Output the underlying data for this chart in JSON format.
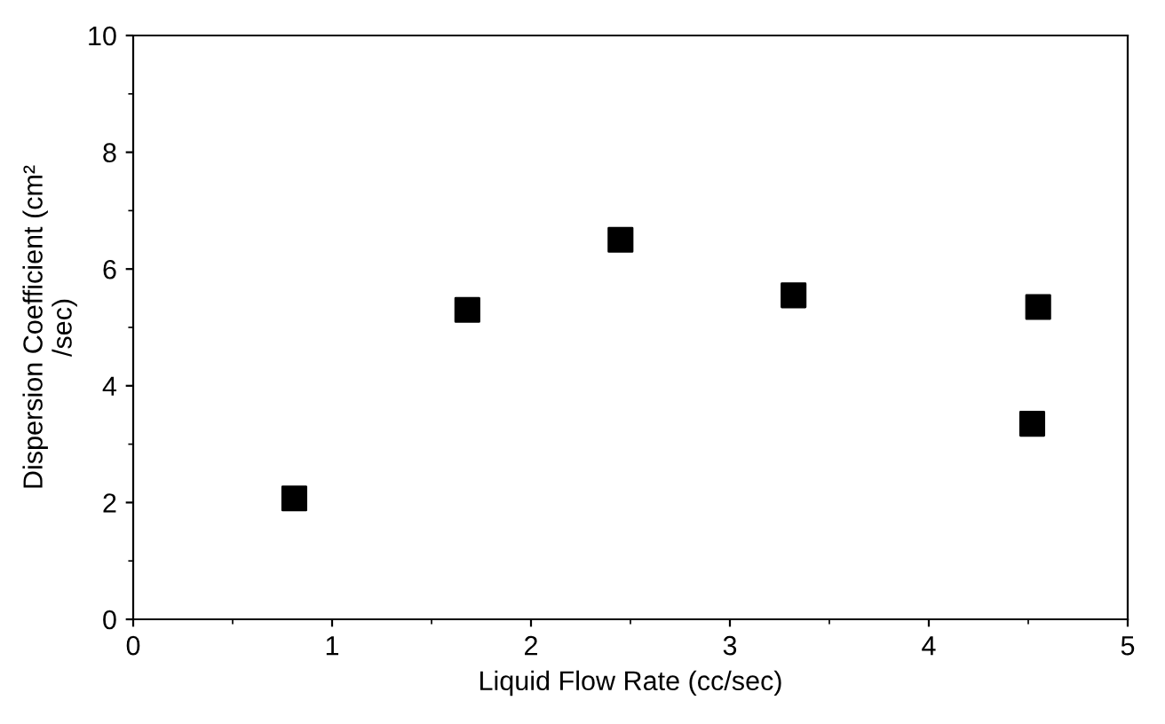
{
  "chart_data": {
    "type": "scatter",
    "xlabel": "Liquid Flow Rate (cc/sec)",
    "ylabel": "Dispersion Coefficient (cm²\n/sec)",
    "x": [
      0.81,
      1.68,
      2.45,
      3.32,
      4.55,
      4.52
    ],
    "series": [
      {
        "color": "#000000",
        "values": [
          2.07,
          5.3,
          6.5,
          5.55,
          5.35,
          3.35
        ]
      }
    ],
    "marker": "square",
    "xlim": [
      0,
      5
    ],
    "xticks": [
      0,
      1,
      2,
      3,
      4,
      5
    ],
    "ylim": [
      0,
      10
    ],
    "yticks": [
      0,
      2,
      4,
      6,
      8,
      10
    ],
    "grid": false,
    "legend": false
  }
}
